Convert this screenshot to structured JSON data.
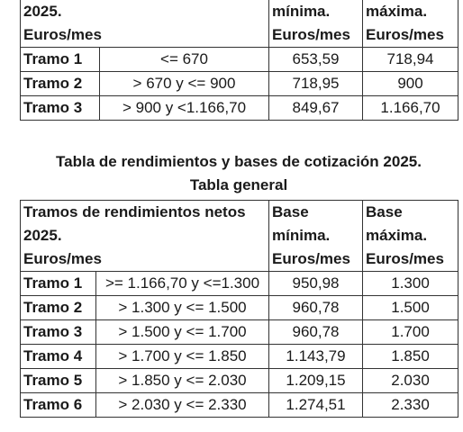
{
  "table1": {
    "header": {
      "col1": "2025.\nEuros/mes",
      "col3": "mínima.\nEuros/mes",
      "col4": "máxima.\nEuros/mes"
    },
    "rows": [
      {
        "tramo": "Tramo 1",
        "range": "<= 670",
        "min": "653,59",
        "max": "718,94"
      },
      {
        "tramo": "Tramo 2",
        "range": "> 670 y <= 900",
        "min": "718,95",
        "max": "900"
      },
      {
        "tramo": "Tramo 3",
        "range": "> 900 y <1.166,70",
        "min": "849,67",
        "max": "1.166,70"
      }
    ]
  },
  "caption": {
    "line1": "Tabla de rendimientos y bases de cotización 2025.",
    "line2": "Tabla general"
  },
  "table2": {
    "header": {
      "col1": "Tramos de rendimientos netos 2025.\nEuros/mes",
      "col3": "Base mínima.\nEuros/mes",
      "col4": "Base máxima.\nEuros/mes"
    },
    "rows": [
      {
        "tramo": "Tramo 1",
        "range": ">= 1.166,70 y <=1.300",
        "min": "950,98",
        "max": "1.300"
      },
      {
        "tramo": "Tramo 2",
        "range": "> 1.300 y <= 1.500",
        "min": "960,78",
        "max": "1.500"
      },
      {
        "tramo": "Tramo 3",
        "range": "> 1.500 y <= 1.700",
        "min": "960,78",
        "max": "1.700"
      },
      {
        "tramo": "Tramo 4",
        "range": "> 1.700 y <= 1.850",
        "min": "1.143,79",
        "max": "1.850"
      },
      {
        "tramo": "Tramo 5",
        "range": "> 1.850 y <= 2.030",
        "min": "1.209,15",
        "max": "2.030"
      },
      {
        "tramo": "Tramo 6",
        "range": "> 2.030 y <= 2.330",
        "min": "1.274,51",
        "max": "2.330"
      }
    ]
  }
}
